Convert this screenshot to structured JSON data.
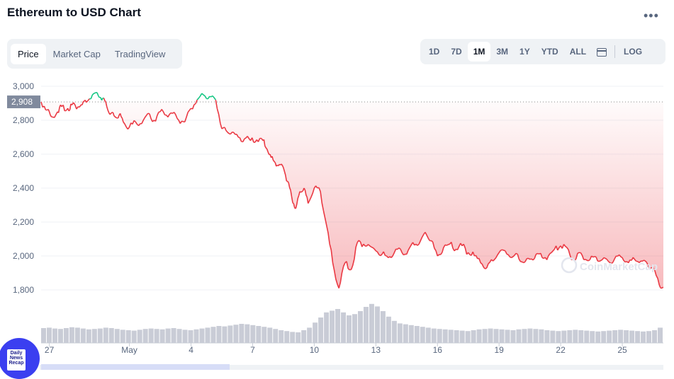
{
  "title": "Ethereum to USD Chart",
  "more_label": "•••",
  "tabs": [
    {
      "label": "Price",
      "active": true
    },
    {
      "label": "Market Cap",
      "active": false
    },
    {
      "label": "TradingView",
      "active": false
    }
  ],
  "ranges": [
    {
      "label": "1D",
      "active": false
    },
    {
      "label": "7D",
      "active": false
    },
    {
      "label": "1M",
      "active": true
    },
    {
      "label": "3M",
      "active": false
    },
    {
      "label": "1Y",
      "active": false
    },
    {
      "label": "YTD",
      "active": false
    },
    {
      "label": "ALL",
      "active": false
    }
  ],
  "log_label": "LOG",
  "calendar_icon": "calendar-icon",
  "watermark": "CoinMarketCap",
  "news_badge": "Daily News Recap",
  "colors": {
    "up": "#16c784",
    "down": "#ea3943",
    "volume": "#c9ccd6"
  },
  "chart_data": {
    "type": "line",
    "x_ticks": [
      "27",
      "May",
      "4",
      "7",
      "10",
      "13",
      "16",
      "19",
      "22",
      "25"
    ],
    "y_ticks": [
      "1,800",
      "2,000",
      "2,200",
      "2,400",
      "2,600",
      "2,800",
      "3,000"
    ],
    "ylim": [
      1750,
      3050
    ],
    "reference_price": 2908,
    "reference_label": "2,908",
    "grid": true,
    "x_range_days": [
      0,
      30.3
    ],
    "series": [
      {
        "x": [
          0,
          0.3,
          0.5,
          0.8,
          1.0,
          1.3,
          1.5,
          1.8,
          2.0,
          2.2,
          2.5,
          2.8,
          3.0,
          3.2,
          3.4,
          3.6,
          3.8,
          4.0,
          4.3,
          4.6,
          4.9,
          5.2,
          5.5,
          5.8,
          6.1,
          6.4,
          6.7,
          7.0,
          7.3,
          7.6,
          7.9,
          8.2,
          8.5,
          8.8,
          9.0,
          9.3,
          9.6,
          9.9,
          10.2,
          10.5,
          10.8,
          11.0,
          11.2,
          11.4,
          11.6,
          11.8,
          12.0,
          12.2,
          12.4,
          12.6,
          12.8,
          13.0,
          13.3,
          13.6,
          13.9,
          14.2,
          14.5,
          14.8,
          15.1,
          15.4,
          15.7,
          16.0,
          16.3,
          16.6,
          16.9,
          17.2,
          17.5,
          17.8,
          18.1,
          18.4,
          18.7,
          19.0,
          19.3,
          19.6,
          19.9,
          20.2,
          20.5,
          20.8,
          21.1,
          21.4,
          21.7,
          22.0,
          22.3,
          22.6,
          22.9,
          23.2,
          23.5,
          23.8,
          24.1,
          24.4,
          24.7,
          25.0,
          25.3,
          25.6,
          25.9,
          26.2,
          26.5,
          26.8,
          27.1,
          27.4,
          27.7,
          28.0,
          28.3,
          28.6,
          28.9,
          29.2,
          29.5,
          29.8,
          30.1,
          30.3
        ],
        "values": [
          2908,
          2860,
          2820,
          2850,
          2880,
          2870,
          2890,
          2880,
          2890,
          2905,
          2950,
          2940,
          2930,
          2880,
          2840,
          2820,
          2830,
          2790,
          2760,
          2790,
          2780,
          2840,
          2800,
          2850,
          2830,
          2840,
          2800,
          2790,
          2870,
          2920,
          2950,
          2940,
          2920,
          2750,
          2740,
          2730,
          2700,
          2690,
          2680,
          2685,
          2680,
          2630,
          2580,
          2550,
          2540,
          2520,
          2440,
          2350,
          2280,
          2380,
          2400,
          2310,
          2400,
          2380,
          2180,
          1960,
          1810,
          1960,
          1920,
          2080,
          2070,
          2060,
          2030,
          2010,
          1990,
          2020,
          2040,
          2010,
          2080,
          2070,
          2140,
          2090,
          2000,
          2050,
          2070,
          2040,
          2060,
          2020,
          2000,
          1960,
          1930,
          1970,
          2020,
          2030,
          1990,
          2010,
          1960,
          1980,
          2010,
          1990,
          2000,
          2040,
          2060,
          2050,
          1980,
          2020,
          1980,
          2000,
          1970,
          1990,
          1960,
          2000,
          1990,
          1960,
          1980,
          1970,
          1960,
          1930,
          1830,
          1815
        ]
      }
    ],
    "volume": [
      35,
      36,
      34,
      33,
      35,
      37,
      36,
      34,
      32,
      33,
      34,
      36,
      35,
      33,
      31,
      30,
      29,
      31,
      33,
      34,
      33,
      32,
      34,
      35,
      33,
      31,
      30,
      32,
      34,
      36,
      38,
      40,
      39,
      41,
      43,
      45,
      44,
      42,
      40,
      38,
      36,
      33,
      30,
      28,
      26,
      25,
      30,
      36,
      48,
      60,
      72,
      76,
      80,
      72,
      65,
      68,
      75,
      85,
      92,
      86,
      75,
      62,
      52,
      46,
      44,
      42,
      40,
      38,
      36,
      34,
      33,
      32,
      31,
      30,
      29,
      28,
      30,
      32,
      33,
      34,
      33,
      32,
      31,
      30,
      32,
      33,
      34,
      33,
      32,
      30,
      29,
      28,
      29,
      30,
      31,
      30,
      29,
      28,
      27,
      28,
      29,
      30,
      31,
      30,
      29,
      28,
      27,
      28,
      30,
      36
    ]
  }
}
